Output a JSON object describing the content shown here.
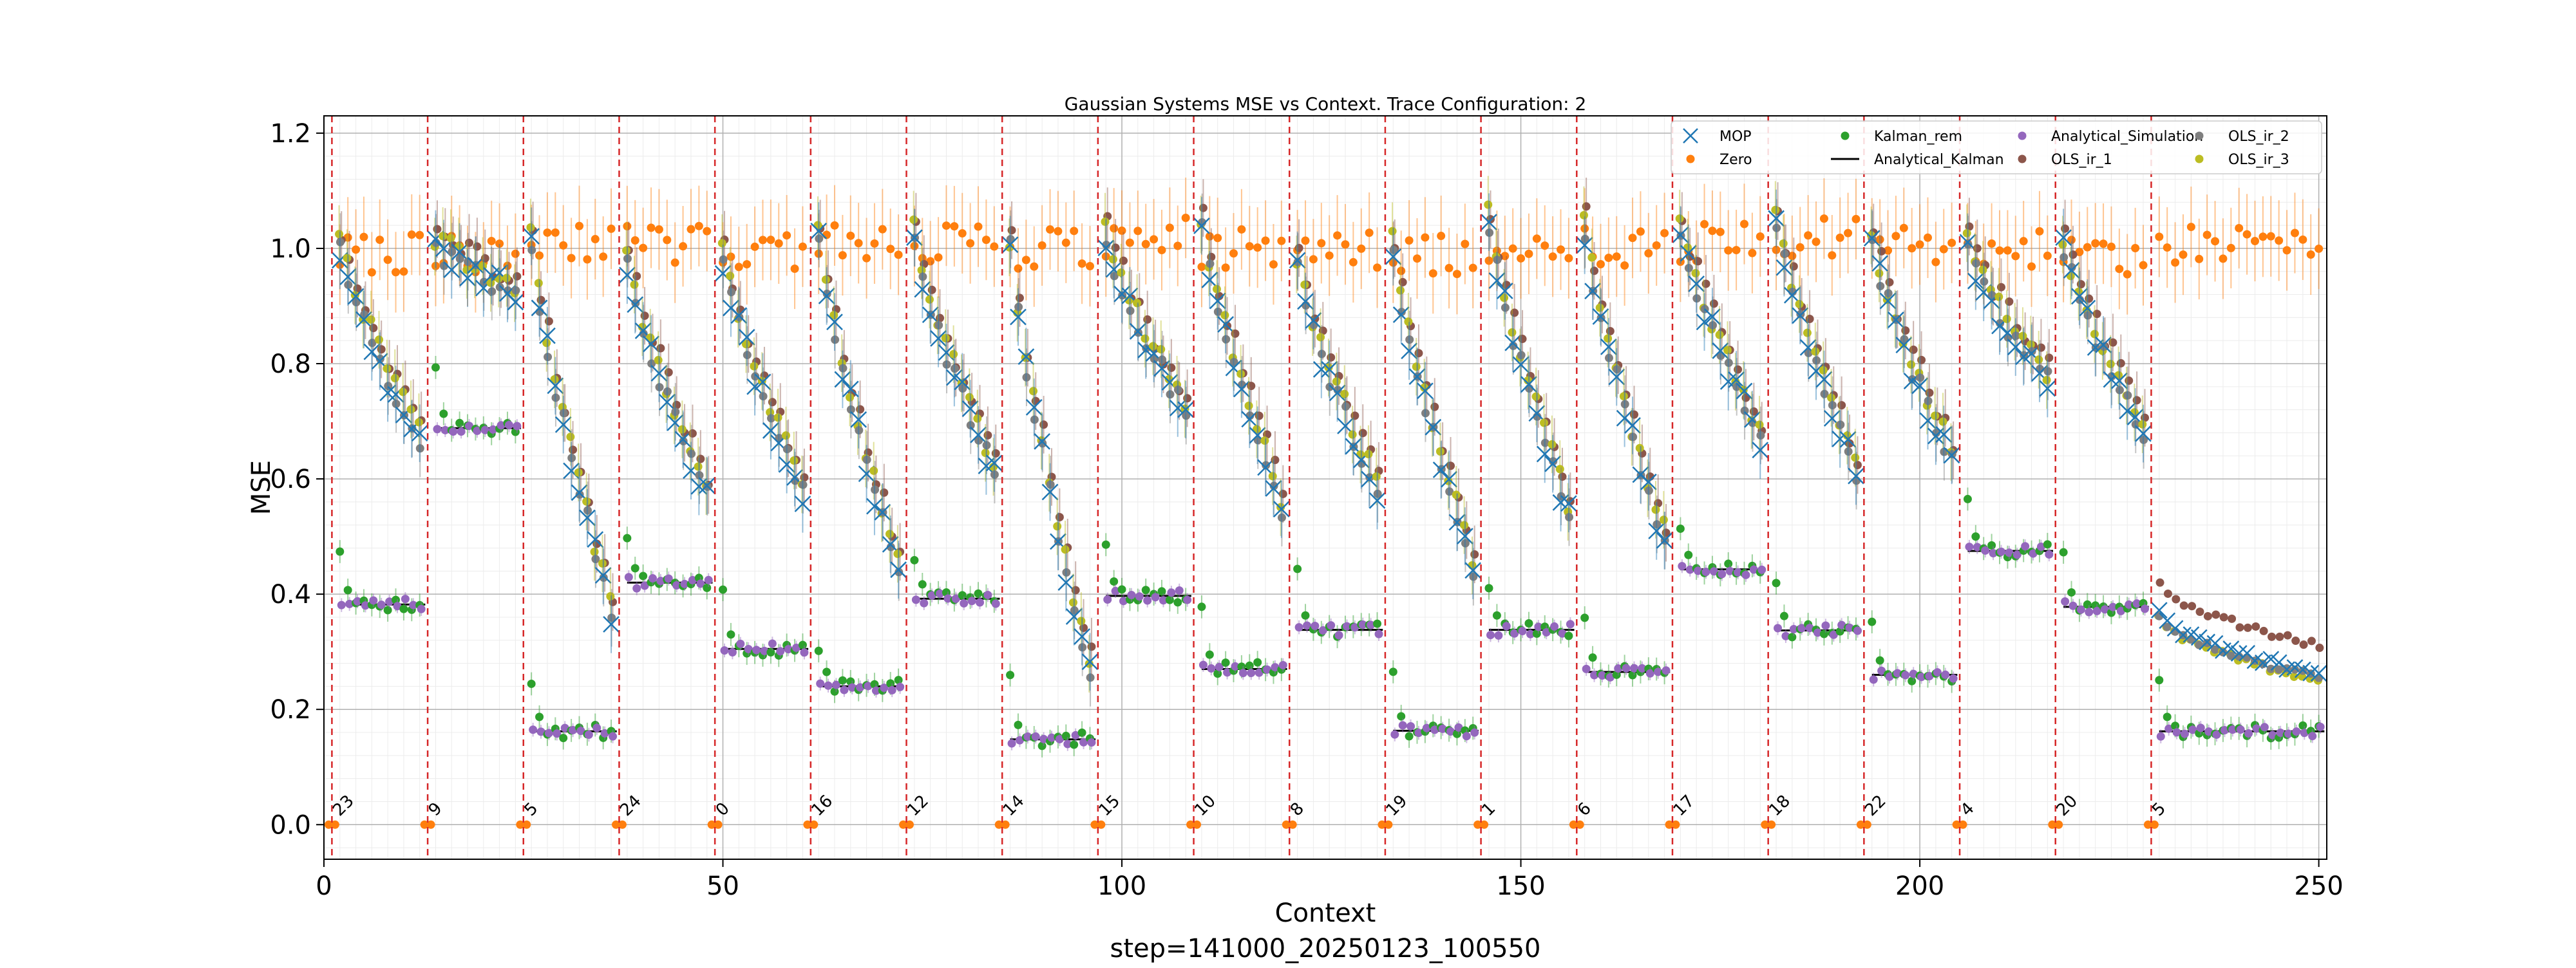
{
  "chart_data": {
    "type": "scatter",
    "title": "Gaussian Systems MSE vs Context. Trace Configuration: 2",
    "xlabel": "Context",
    "ylabel": "MSE",
    "footer": "step=141000_20250123_100550",
    "xlim": [
      0,
      251
    ],
    "ylim": [
      -0.06,
      1.23
    ],
    "xticks": [
      0,
      50,
      100,
      150,
      200,
      250
    ],
    "yticks": [
      0.0,
      0.2,
      0.4,
      0.6,
      0.8,
      1.0,
      1.2
    ],
    "xtick_labels": [
      "0",
      "50",
      "100",
      "150",
      "200",
      "250"
    ],
    "ytick_labels": [
      "0.0",
      "0.2",
      "0.4",
      "0.6",
      "0.8",
      "1.0",
      "1.2"
    ],
    "grid": true,
    "legend_position": "top-right",
    "legend": [
      "MOP",
      "Zero",
      "Kalman_rem",
      "Analytical_Kalman",
      "Analytical_Simulation",
      "OLS_ir_1",
      "OLS_ir_2",
      "OLS_ir_3"
    ],
    "colors": {
      "MOP": "#1f77b4",
      "Zero": "#ff7f0e",
      "Kalman_rem": "#2ca02c",
      "Analytical_Kalman": "#000000",
      "Analytical_Simulation": "#9467bd",
      "OLS_ir_1": "#8c564b",
      "OLS_ir_2": "#7f7f7f",
      "OLS_ir_3": "#bcbd22",
      "separator": "#d62728"
    },
    "segments": [
      {
        "start": 1,
        "end": 13,
        "label": "23",
        "kalman": 0.382,
        "mop_start": 1.0,
        "mop_end": 0.66,
        "zero": 0.99
      },
      {
        "start": 13,
        "end": 25,
        "label": "9",
        "kalman": 0.688,
        "mop_start": 1.0,
        "mop_end": 0.92,
        "zero": 0.99
      },
      {
        "start": 25,
        "end": 37,
        "label": "5",
        "kalman": 0.162,
        "mop_start": 1.0,
        "mop_end": 0.37,
        "zero": 1.01
      },
      {
        "start": 37,
        "end": 49,
        "label": "24",
        "kalman": 0.42,
        "mop_start": 0.97,
        "mop_end": 0.57,
        "zero": 1.01
      },
      {
        "start": 49,
        "end": 61,
        "label": "0",
        "kalman": 0.305,
        "mop_start": 0.98,
        "mop_end": 0.57,
        "zero": 0.99
      },
      {
        "start": 61,
        "end": 73,
        "label": "16",
        "kalman": 0.24,
        "mop_start": 1.02,
        "mop_end": 0.43,
        "zero": 1.01
      },
      {
        "start": 73,
        "end": 85,
        "label": "12",
        "kalman": 0.392,
        "mop_start": 1.01,
        "mop_end": 0.61,
        "zero": 1.01
      },
      {
        "start": 85,
        "end": 97,
        "label": "14",
        "kalman": 0.148,
        "mop_start": 1.0,
        "mop_end": 0.26,
        "zero": 1.0
      },
      {
        "start": 97,
        "end": 109,
        "label": "15",
        "kalman": 0.397,
        "mop_start": 1.02,
        "mop_end": 0.71,
        "zero": 1.02
      },
      {
        "start": 109,
        "end": 121,
        "label": "10",
        "kalman": 0.27,
        "mop_start": 1.04,
        "mop_end": 0.55,
        "zero": 1.0
      },
      {
        "start": 121,
        "end": 133,
        "label": "8",
        "kalman": 0.338,
        "mop_start": 0.96,
        "mop_end": 0.58,
        "zero": 1.0
      },
      {
        "start": 133,
        "end": 145,
        "label": "19",
        "kalman": 0.163,
        "mop_start": 0.99,
        "mop_end": 0.45,
        "zero": 0.99
      },
      {
        "start": 145,
        "end": 157,
        "label": "1",
        "kalman": 0.338,
        "mop_start": 1.04,
        "mop_end": 0.54,
        "zero": 1.0
      },
      {
        "start": 157,
        "end": 169,
        "label": "6",
        "kalman": 0.265,
        "mop_start": 1.03,
        "mop_end": 0.49,
        "zero": 1.0
      },
      {
        "start": 169,
        "end": 181,
        "label": "17",
        "kalman": 0.443,
        "mop_start": 1.03,
        "mop_end": 0.67,
        "zero": 1.01
      },
      {
        "start": 181,
        "end": 193,
        "label": "18",
        "kalman": 0.337,
        "mop_start": 1.04,
        "mop_end": 0.61,
        "zero": 1.02
      },
      {
        "start": 193,
        "end": 205,
        "label": "22",
        "kalman": 0.26,
        "mop_start": 1.01,
        "mop_end": 0.63,
        "zero": 1.01
      },
      {
        "start": 205,
        "end": 217,
        "label": "4",
        "kalman": 0.475,
        "mop_start": 0.99,
        "mop_end": 0.77,
        "zero": 1.0
      },
      {
        "start": 217,
        "end": 229,
        "label": "20",
        "kalman": 0.378,
        "mop_start": 1.0,
        "mop_end": 0.68,
        "zero": 0.99
      },
      {
        "start": 229,
        "end": 251,
        "label": "5",
        "kalman": 0.162,
        "mop_start": 0.37,
        "mop_end": 0.26,
        "zero": 1.01
      }
    ]
  }
}
